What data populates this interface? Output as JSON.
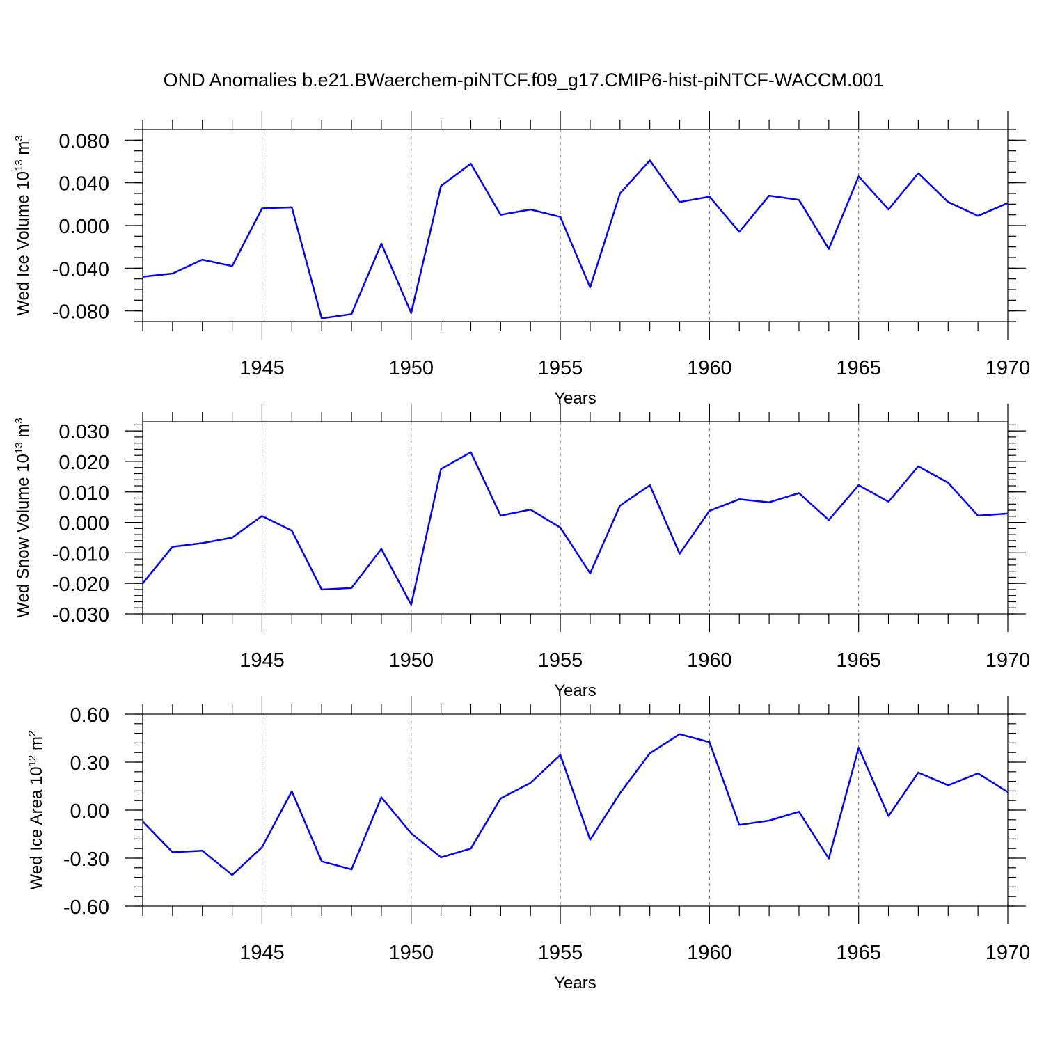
{
  "title": "OND Anomalies b.e21.BWaerchem-piNTCF.f09_g17.CMIP6-hist-piNTCF-WACCM.001",
  "colors": {
    "line": "#0000ff",
    "axis": "#000000",
    "grid": "#666666"
  },
  "chart_data": [
    {
      "type": "line",
      "title": "",
      "xlabel": "Years",
      "ylabel": "Wed Ice Volume 10",
      "ylabel_exp": "13",
      "ylabel_unit": "m",
      "ylabel_unit_exp": "3",
      "xlim": [
        1941,
        1970
      ],
      "ylim": [
        -0.09,
        0.09
      ],
      "grid": "vertical dashed at major x ticks",
      "xticks": [
        1945,
        1950,
        1955,
        1960,
        1965,
        1970
      ],
      "xtick_labels": [
        "1945",
        "1950",
        "1955",
        "1960",
        "1965",
        "1970"
      ],
      "yticks": [
        -0.08,
        -0.04,
        0.0,
        0.04,
        0.08
      ],
      "ytick_labels": [
        "-0.080",
        "-0.040",
        "0.000",
        "0.040",
        "0.080"
      ],
      "yminor_step": 0.01,
      "x": [
        1941,
        1942,
        1943,
        1944,
        1945,
        1946,
        1947,
        1948,
        1949,
        1950,
        1951,
        1952,
        1953,
        1954,
        1955,
        1956,
        1957,
        1958,
        1959,
        1960,
        1961,
        1962,
        1963,
        1964,
        1965,
        1966,
        1967,
        1968,
        1969,
        1970
      ],
      "series": [
        {
          "name": "Wed Ice Volume",
          "values": [
            -0.048,
            -0.045,
            -0.032,
            -0.038,
            0.016,
            0.017,
            -0.087,
            -0.083,
            -0.017,
            -0.082,
            0.037,
            0.058,
            0.01,
            0.015,
            0.008,
            -0.058,
            0.03,
            0.061,
            0.022,
            0.027,
            -0.006,
            0.028,
            0.024,
            -0.022,
            0.046,
            0.015,
            0.049,
            0.022,
            0.009,
            0.021
          ]
        }
      ]
    },
    {
      "type": "line",
      "title": "",
      "xlabel": "Years",
      "ylabel": "Wed Snow Volume 10",
      "ylabel_exp": "13",
      "ylabel_unit": "m",
      "ylabel_unit_exp": "3",
      "xlim": [
        1941,
        1970
      ],
      "ylim": [
        -0.03,
        0.033
      ],
      "grid": "vertical dashed at major x ticks",
      "xticks": [
        1945,
        1950,
        1955,
        1960,
        1965,
        1970
      ],
      "xtick_labels": [
        "1945",
        "1950",
        "1955",
        "1960",
        "1965",
        "1970"
      ],
      "yticks": [
        -0.03,
        -0.02,
        -0.01,
        0.0,
        0.01,
        0.02,
        0.03
      ],
      "ytick_labels": [
        "-0.030",
        "-0.020",
        "-0.010",
        "0.000",
        "0.010",
        "0.020",
        "0.030"
      ],
      "yminor_step": 0.002,
      "x": [
        1941,
        1942,
        1943,
        1944,
        1945,
        1946,
        1947,
        1948,
        1949,
        1950,
        1951,
        1952,
        1953,
        1954,
        1955,
        1956,
        1957,
        1958,
        1959,
        1960,
        1961,
        1962,
        1963,
        1964,
        1965,
        1966,
        1967,
        1968,
        1969,
        1970
      ],
      "series": [
        {
          "name": "Wed Snow Volume",
          "values": [
            -0.02,
            -0.008,
            -0.0068,
            -0.005,
            0.0021,
            -0.0027,
            -0.022,
            -0.0215,
            -0.0087,
            -0.027,
            0.0175,
            0.023,
            0.0022,
            0.0042,
            -0.0017,
            -0.0167,
            0.0055,
            0.0122,
            -0.0103,
            0.0038,
            0.0076,
            0.0066,
            0.0096,
            0.0008,
            0.0122,
            0.0068,
            0.0184,
            0.013,
            0.0022,
            0.0029
          ]
        }
      ]
    },
    {
      "type": "line",
      "title": "",
      "xlabel": "Years",
      "ylabel": "Wed Ice Area 10",
      "ylabel_exp": "12",
      "ylabel_unit": "m",
      "ylabel_unit_exp": "2",
      "xlim": [
        1941,
        1970
      ],
      "ylim": [
        -0.6,
        0.6
      ],
      "grid": "vertical dashed at major x ticks",
      "xticks": [
        1945,
        1950,
        1955,
        1960,
        1965,
        1970
      ],
      "xtick_labels": [
        "1945",
        "1950",
        "1955",
        "1960",
        "1965",
        "1970"
      ],
      "yticks": [
        -0.6,
        -0.3,
        0.0,
        0.3,
        0.6
      ],
      "ytick_labels": [
        "-0.60",
        "-0.30",
        "0.00",
        "0.30",
        "0.60"
      ],
      "yminor_step": 0.06,
      "x": [
        1941,
        1942,
        1943,
        1944,
        1945,
        1946,
        1947,
        1948,
        1949,
        1950,
        1951,
        1952,
        1953,
        1954,
        1955,
        1956,
        1957,
        1958,
        1959,
        1960,
        1961,
        1962,
        1963,
        1964,
        1965,
        1966,
        1967,
        1968,
        1969,
        1970
      ],
      "series": [
        {
          "name": "Wed Ice Area",
          "values": [
            -0.07,
            -0.263,
            -0.253,
            -0.405,
            -0.232,
            0.118,
            -0.32,
            -0.37,
            0.08,
            -0.145,
            -0.295,
            -0.24,
            0.073,
            0.17,
            0.345,
            -0.185,
            0.105,
            0.355,
            0.475,
            0.425,
            -0.092,
            -0.065,
            -0.01,
            -0.302,
            0.39,
            -0.037,
            0.235,
            0.155,
            0.23,
            0.113
          ]
        }
      ]
    }
  ]
}
